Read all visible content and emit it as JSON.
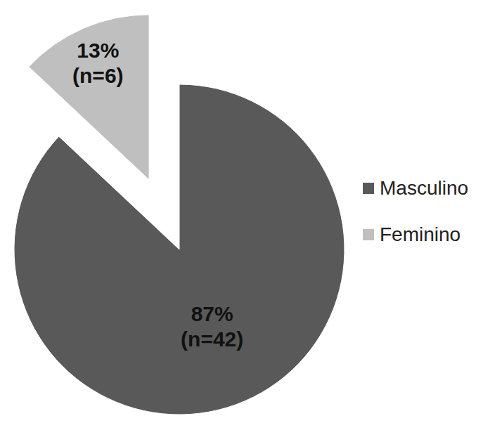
{
  "chart_data": {
    "type": "pie",
    "categories": [
      "Masculino",
      "Feminino"
    ],
    "values": [
      87,
      13
    ],
    "value_labels": [
      "87%",
      "13%"
    ],
    "counts": [
      42,
      6
    ],
    "count_labels": [
      "(n=42)",
      "(n=6)"
    ],
    "colors": [
      "#595959",
      "#bfbfbf"
    ],
    "legend": "right",
    "data_labels": true
  }
}
